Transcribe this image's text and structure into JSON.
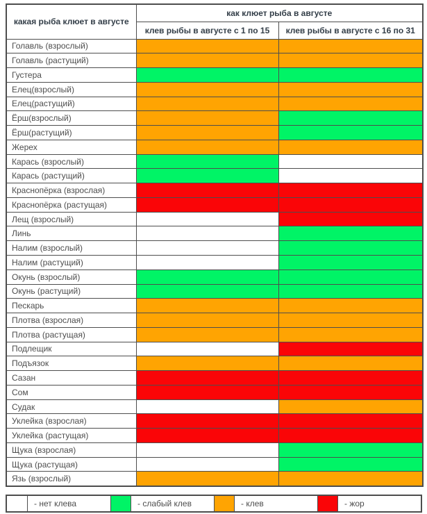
{
  "colors": {
    "no_bite": "#FFFFFF",
    "weak_bite": "#00F466",
    "bite": "#FFA402",
    "feeding_frenzy": "#FA0507",
    "border": "#4d4d4d",
    "header_text": "#333e48",
    "body_text": "#4d4d4d"
  },
  "table": {
    "header": {
      "col_fish": "какая рыба клюет в августе",
      "col_group": "как клюет рыба в августе",
      "col_period1": "клев рыбы в августе с 1 по 15",
      "col_period2": "клев рыбы в августе с 16 по 31"
    },
    "rows": [
      {
        "name": "Голавль (взрослый)",
        "p1": "bite",
        "p2": "bite"
      },
      {
        "name": "Голавль (растущий)",
        "p1": "bite",
        "p2": "bite"
      },
      {
        "name": "Густера",
        "p1": "weak_bite",
        "p2": "weak_bite"
      },
      {
        "name": "Елец(взрослый)",
        "p1": "bite",
        "p2": "bite"
      },
      {
        "name": "Елец(растущий)",
        "p1": "bite",
        "p2": "bite"
      },
      {
        "name": "Ёрш(взрослый)",
        "p1": "bite",
        "p2": "weak_bite"
      },
      {
        "name": "Ёрш(растущий)",
        "p1": "bite",
        "p2": "weak_bite"
      },
      {
        "name": "Жерех",
        "p1": "bite",
        "p2": "bite"
      },
      {
        "name": "Карась (взрослый)",
        "p1": "weak_bite",
        "p2": "no_bite"
      },
      {
        "name": "Карась (растущий)",
        "p1": "weak_bite",
        "p2": "no_bite"
      },
      {
        "name": "Краснопёрка (взрослая)",
        "p1": "feeding_frenzy",
        "p2": "feeding_frenzy"
      },
      {
        "name": "Краснопёрка (растущая)",
        "p1": "feeding_frenzy",
        "p2": "feeding_frenzy"
      },
      {
        "name": "Лещ (взрослый)",
        "p1": "no_bite",
        "p2": "feeding_frenzy"
      },
      {
        "name": "Линь",
        "p1": "no_bite",
        "p2": "weak_bite"
      },
      {
        "name": "Налим (взрослый)",
        "p1": "no_bite",
        "p2": "weak_bite"
      },
      {
        "name": "Налим (растущий)",
        "p1": "no_bite",
        "p2": "weak_bite"
      },
      {
        "name": "Окунь (взрослый)",
        "p1": "weak_bite",
        "p2": "weak_bite"
      },
      {
        "name": "Окунь (растущий)",
        "p1": "weak_bite",
        "p2": "weak_bite"
      },
      {
        "name": "Пескарь",
        "p1": "bite",
        "p2": "bite"
      },
      {
        "name": "Плотва (взрослая)",
        "p1": "bite",
        "p2": "bite"
      },
      {
        "name": "Плотва (растущая)",
        "p1": "bite",
        "p2": "bite"
      },
      {
        "name": "Подлещик",
        "p1": "no_bite",
        "p2": "feeding_frenzy"
      },
      {
        "name": "Подъязок",
        "p1": "bite",
        "p2": "bite"
      },
      {
        "name": "Сазан",
        "p1": "feeding_frenzy",
        "p2": "feeding_frenzy"
      },
      {
        "name": "Сом",
        "p1": "feeding_frenzy",
        "p2": "feeding_frenzy"
      },
      {
        "name": "Судак",
        "p1": "no_bite",
        "p2": "bite"
      },
      {
        "name": "Уклейка (взрослая)",
        "p1": "feeding_frenzy",
        "p2": "feeding_frenzy"
      },
      {
        "name": "Уклейка (растущая)",
        "p1": "feeding_frenzy",
        "p2": "feeding_frenzy"
      },
      {
        "name": "Щука (взрослая)",
        "p1": "no_bite",
        "p2": "weak_bite"
      },
      {
        "name": "Щука (растущая)",
        "p1": "no_bite",
        "p2": "weak_bite"
      },
      {
        "name": "Язь (взрослый)",
        "p1": "bite",
        "p2": "bite"
      }
    ]
  },
  "legend": {
    "items": [
      {
        "key": "no_bite",
        "label": "- нет клева"
      },
      {
        "key": "weak_bite",
        "label": "- слабый клев"
      },
      {
        "key": "bite",
        "label": "- клев"
      },
      {
        "key": "feeding_frenzy",
        "label": "- жор"
      }
    ]
  }
}
